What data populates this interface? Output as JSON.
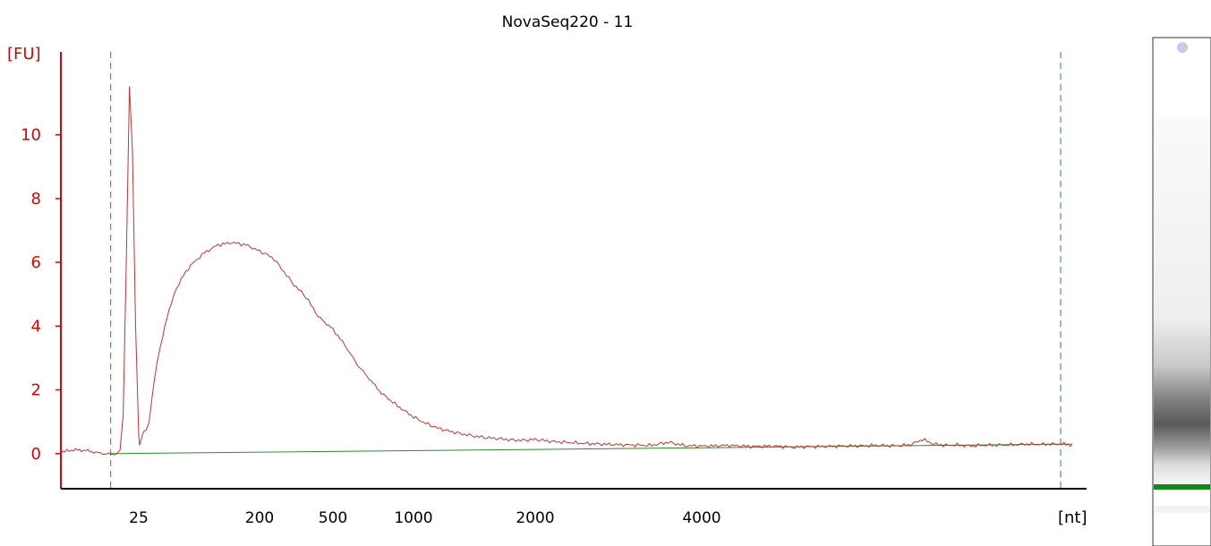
{
  "chart_data": {
    "type": "line",
    "title": "NovaSeq220 - 11",
    "y_unit_label": "[FU]",
    "x_unit_label": "[nt]",
    "ylim": [
      -1.1,
      12.6
    ],
    "y_ticks": [
      0,
      2,
      4,
      6,
      8,
      10
    ],
    "x_ticks": [
      "25",
      "200",
      "500",
      "1000",
      "2000",
      "4000"
    ],
    "grid": false,
    "colors": {
      "trace": "#c83232",
      "baseline": "#2e8b2e",
      "markers": "#2e8b2e",
      "axis": "#e00000",
      "band": "#138a13"
    },
    "series": [
      {
        "role": "trace",
        "x": [
          0,
          4,
          8,
          12,
          16,
          18,
          19,
          20,
          21,
          22,
          23,
          24,
          25,
          26,
          28,
          32,
          36,
          40,
          44,
          48,
          52,
          56,
          60,
          66,
          72,
          80,
          90,
          100,
          120,
          140,
          160,
          180,
          200,
          230,
          260,
          300,
          340,
          380,
          400,
          440,
          500,
          560,
          600,
          650,
          700,
          750,
          800,
          900,
          1000,
          1100,
          1200,
          1300,
          1400,
          1500,
          1600,
          1700,
          1800,
          1900,
          2000,
          2200,
          2400,
          2600,
          2800,
          3000,
          3200,
          3400,
          3600,
          3800,
          4000,
          4200,
          4400,
          4600,
          4800,
          5000,
          5200,
          5400,
          5600,
          5800,
          6000,
          6200,
          6400,
          6600,
          6800,
          7000,
          7200,
          7400,
          7600,
          7800,
          8000,
          8200,
          8400,
          8600,
          8800,
          9000,
          9200,
          9400,
          9600,
          9800,
          10000,
          10200,
          10380
        ],
        "y": [
          0.05,
          0.12,
          0.1,
          0.02,
          -0.02,
          0.0,
          0.05,
          1.2,
          6.0,
          11.5,
          9.5,
          4.0,
          0.6,
          0.25,
          0.35,
          0.7,
          0.8,
          0.95,
          1.7,
          2.4,
          2.9,
          3.3,
          3.7,
          4.3,
          4.7,
          5.2,
          5.6,
          5.9,
          6.3,
          6.55,
          6.62,
          6.55,
          6.35,
          6.25,
          6.1,
          5.7,
          5.3,
          5.0,
          4.8,
          4.3,
          3.9,
          3.5,
          3.2,
          2.8,
          2.5,
          2.2,
          1.9,
          1.5,
          1.15,
          0.95,
          0.8,
          0.7,
          0.62,
          0.55,
          0.5,
          0.47,
          0.43,
          0.42,
          0.45,
          0.38,
          0.35,
          0.32,
          0.3,
          0.28,
          0.27,
          0.26,
          0.36,
          0.25,
          0.24,
          0.24,
          0.26,
          0.25,
          0.23,
          0.23,
          0.24,
          0.22,
          0.2,
          0.22,
          0.22,
          0.23,
          0.24,
          0.24,
          0.25,
          0.26,
          0.25,
          0.25,
          0.28,
          0.45,
          0.3,
          0.26,
          0.27,
          0.24,
          0.26,
          0.27,
          0.27,
          0.28,
          0.3,
          0.29,
          0.3,
          0.3,
          0.28
        ]
      },
      {
        "role": "baseline",
        "x": [
          16,
          10380
        ],
        "y": [
          0.0,
          0.3
        ]
      }
    ],
    "marker_lines_x": [
      16,
      10180
    ],
    "gel_lane": {
      "lower_marker_band": true,
      "smear_peak": "dark gray"
    }
  }
}
